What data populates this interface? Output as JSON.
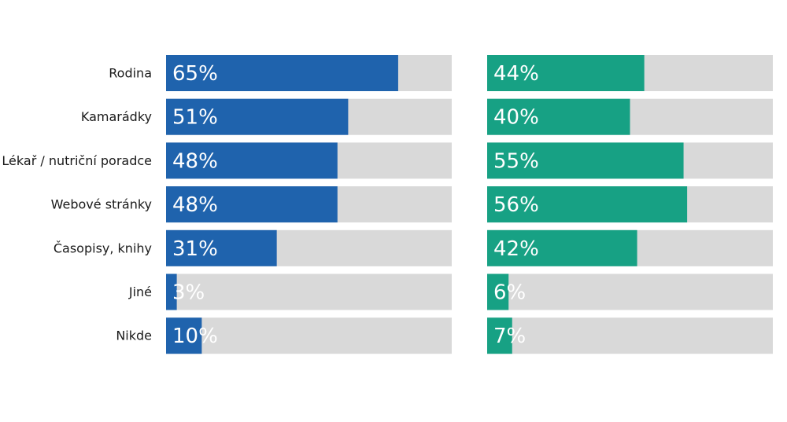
{
  "chart_data": {
    "type": "bar",
    "orientation": "horizontal",
    "categories": [
      "Rodina",
      "Kamarádky",
      "Lékař / nutriční poradce",
      "Webové stránky",
      "Časopisy, knihy",
      "Jiné",
      "Nikde"
    ],
    "series": [
      {
        "values": [
          65,
          51,
          48,
          48,
          31,
          3,
          10
        ],
        "labels": [
          "65%",
          "51%",
          "48%",
          "48%",
          "31%",
          "3%",
          "10%"
        ],
        "color": "#1f63ad"
      },
      {
        "values": [
          44,
          40,
          55,
          56,
          42,
          6,
          7
        ],
        "labels": [
          "44%",
          "40%",
          "55%",
          "56%",
          "42%",
          "6%",
          "7%"
        ],
        "color": "#17a184"
      }
    ],
    "background_bar_color": "#d9d9d9",
    "xlim": [
      0,
      80
    ],
    "grid": false,
    "legend": false,
    "title": "",
    "xlabel": "",
    "ylabel": ""
  }
}
